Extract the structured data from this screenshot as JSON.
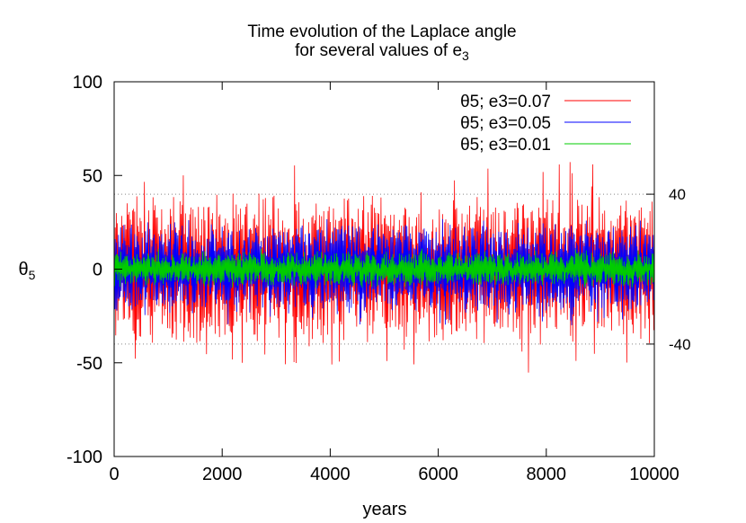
{
  "chart_data": {
    "type": "line",
    "title_lines": [
      "Time evolution of the Laplace angle",
      "for several values of e3"
    ],
    "xlabel": "years",
    "ylabel": "θ5",
    "xlim": [
      0,
      10000
    ],
    "ylim": [
      -100,
      100
    ],
    "x_ticks": [
      "0",
      "2000",
      "4000",
      "6000",
      "8000",
      "10000"
    ],
    "y_ticks": [
      "-100",
      "-50",
      "0",
      "50",
      "100"
    ],
    "y2_ticks": [
      "40",
      "-40"
    ],
    "reference_lines": [
      40,
      -40
    ],
    "legend_position": "top-right",
    "series": [
      {
        "name": "θ5; e3=0.07",
        "color": "#ff0000",
        "amplitude_range": [
          -57,
          58
        ],
        "typical_amplitude": 30
      },
      {
        "name": "θ5; e3=0.05",
        "color": "#0000ff",
        "amplitude_range": [
          -30,
          28
        ],
        "typical_amplitude": 18
      },
      {
        "name": "θ5; e3=0.01",
        "color": "#00cc00",
        "amplitude_range": [
          -10,
          11
        ],
        "typical_amplitude": 7
      }
    ]
  }
}
